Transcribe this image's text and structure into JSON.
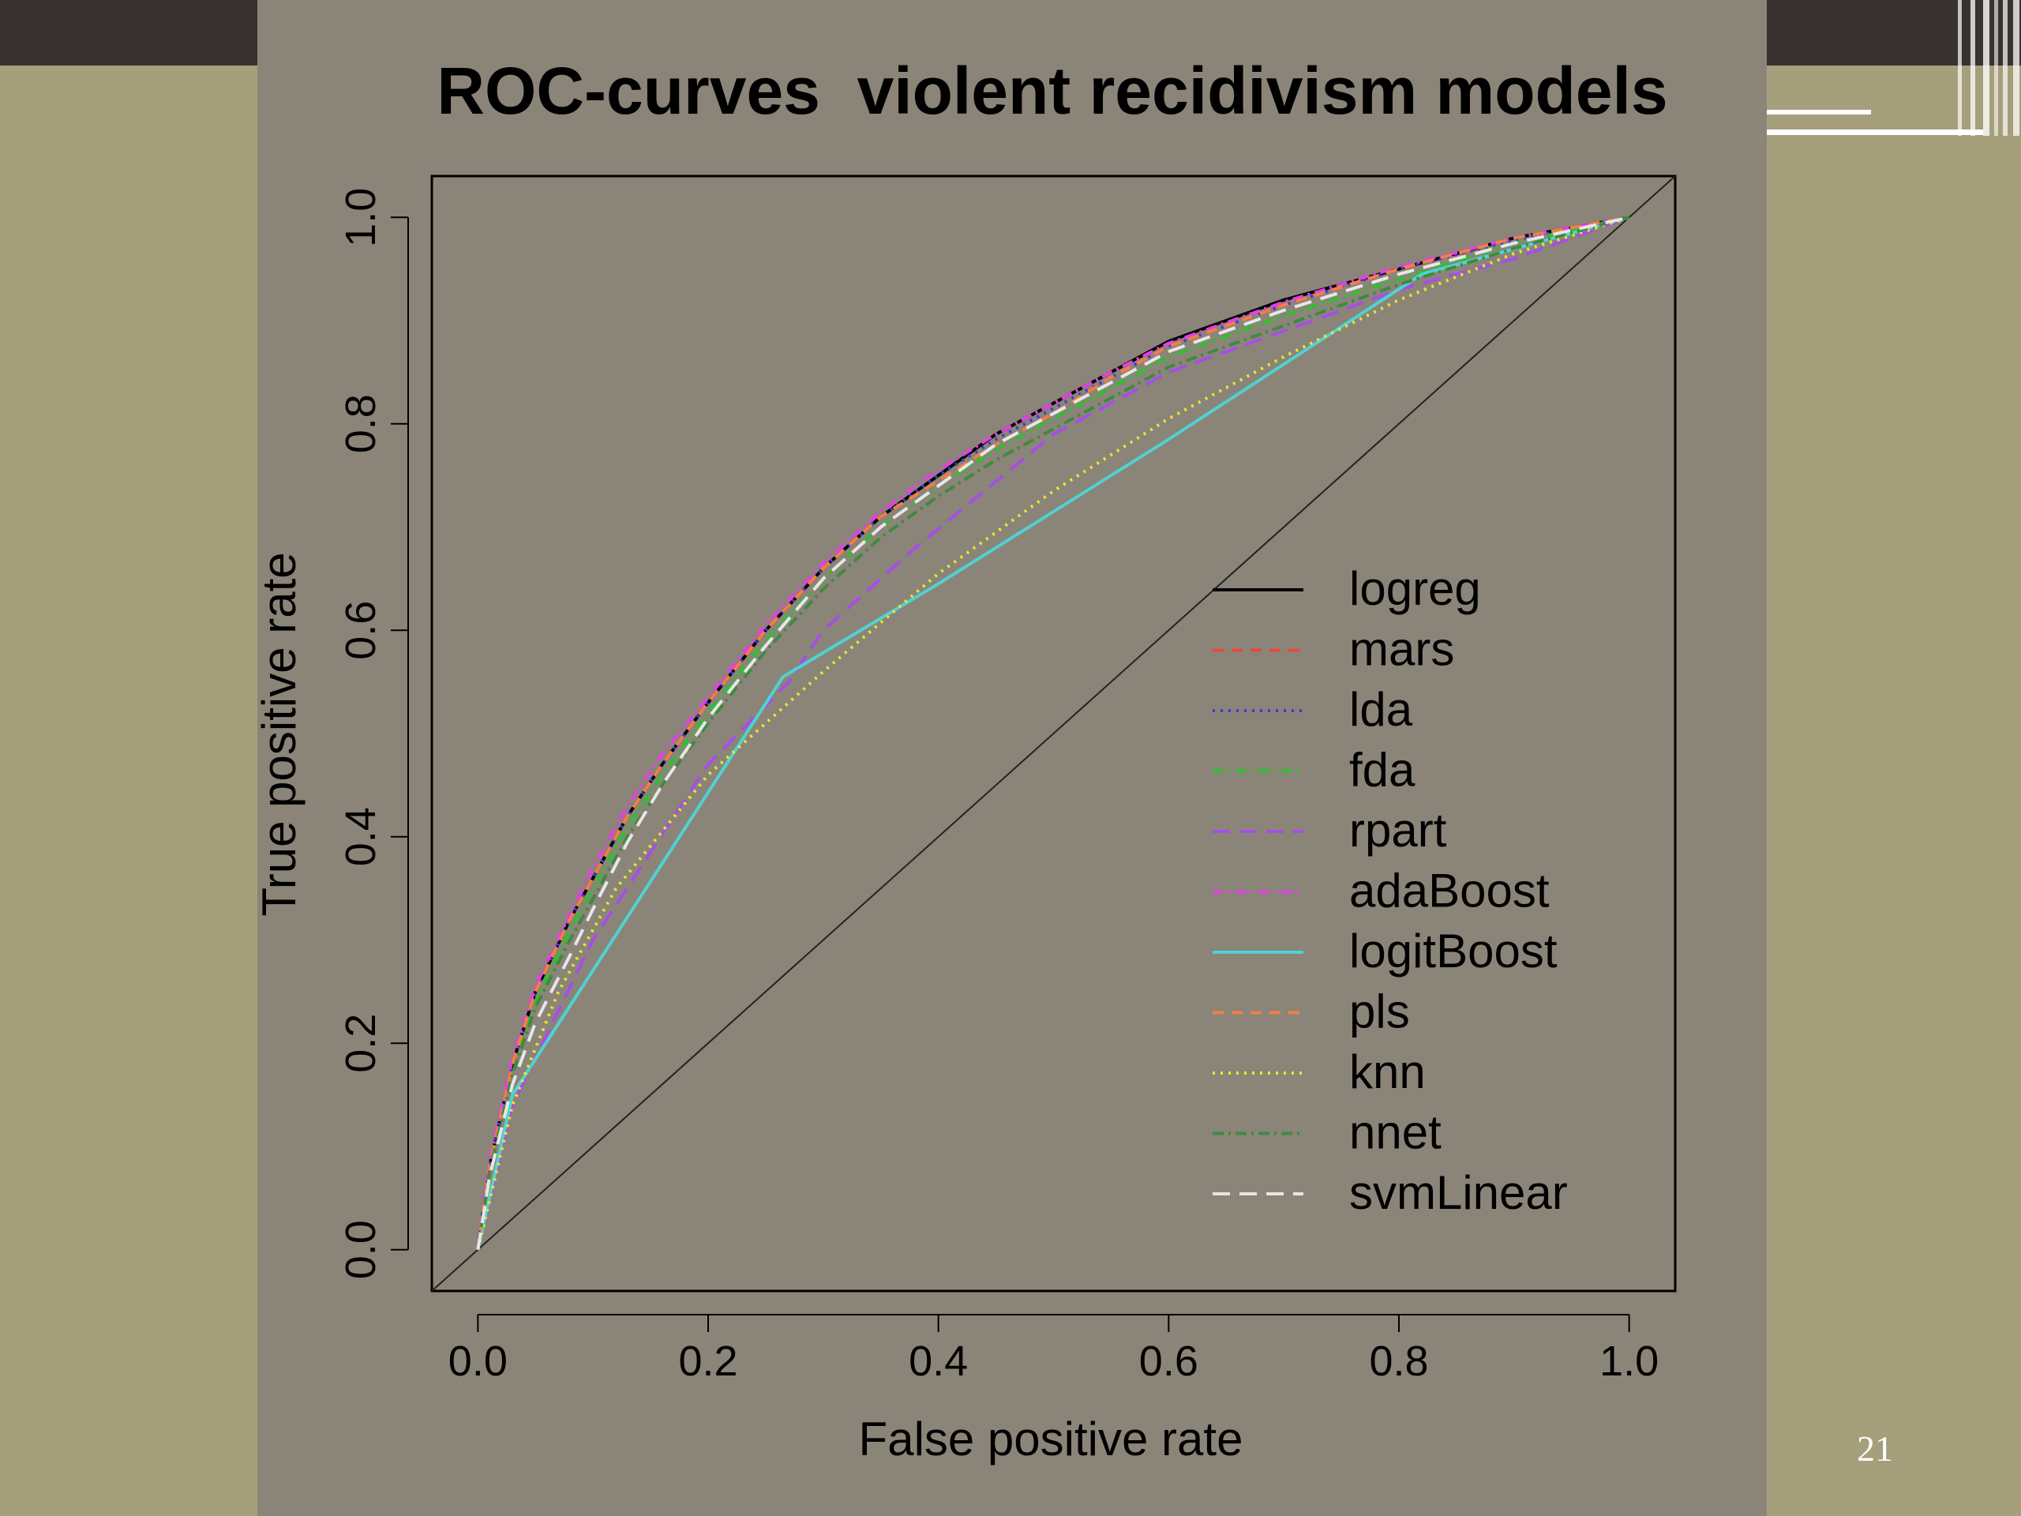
{
  "slide": {
    "page_number": "21"
  },
  "chart_data": {
    "type": "line",
    "title": "ROC-curves  violent recidivism models",
    "xlabel": "False positive rate",
    "ylabel": "True positive rate",
    "xlim": [
      -0.04,
      1.04
    ],
    "ylim": [
      -0.04,
      1.04
    ],
    "xticks": [
      "0.0",
      "0.2",
      "0.4",
      "0.6",
      "0.8",
      "1.0"
    ],
    "yticks": [
      "0.0",
      "0.2",
      "0.4",
      "0.6",
      "0.8",
      "1.0"
    ],
    "grid": false,
    "legend_position": "bottom-right",
    "reference_line": {
      "x": [
        -0.04,
        1.04
      ],
      "y": [
        -0.04,
        1.04
      ],
      "color": "#222222"
    },
    "series": [
      {
        "name": "logreg",
        "color": "#000000",
        "dash": "",
        "x": [
          0,
          0.01,
          0.03,
          0.05,
          0.08,
          0.1,
          0.13,
          0.16,
          0.2,
          0.25,
          0.3,
          0.35,
          0.4,
          0.45,
          0.5,
          0.55,
          0.6,
          0.7,
          0.8,
          0.9,
          1
        ],
        "y": [
          0,
          0.08,
          0.18,
          0.25,
          0.32,
          0.36,
          0.42,
          0.47,
          0.53,
          0.6,
          0.66,
          0.71,
          0.75,
          0.79,
          0.82,
          0.85,
          0.88,
          0.92,
          0.95,
          0.98,
          1
        ]
      },
      {
        "name": "mars",
        "color": "#e8473d",
        "dash": "14,10",
        "x": [
          0,
          0.01,
          0.03,
          0.05,
          0.08,
          0.1,
          0.13,
          0.16,
          0.2,
          0.25,
          0.3,
          0.35,
          0.4,
          0.45,
          0.5,
          0.55,
          0.6,
          0.7,
          0.8,
          0.9,
          1
        ],
        "y": [
          0,
          0.08,
          0.18,
          0.25,
          0.32,
          0.36,
          0.42,
          0.47,
          0.53,
          0.6,
          0.66,
          0.71,
          0.745,
          0.78,
          0.81,
          0.845,
          0.875,
          0.915,
          0.95,
          0.98,
          1
        ]
      },
      {
        "name": "lda",
        "color": "#3b3fd6",
        "dash": "3,7",
        "x": [
          0,
          0.01,
          0.03,
          0.05,
          0.08,
          0.1,
          0.13,
          0.16,
          0.2,
          0.25,
          0.3,
          0.35,
          0.4,
          0.45,
          0.5,
          0.55,
          0.6,
          0.7,
          0.8,
          0.9,
          1
        ],
        "y": [
          0,
          0.08,
          0.18,
          0.25,
          0.32,
          0.36,
          0.42,
          0.47,
          0.53,
          0.6,
          0.66,
          0.71,
          0.75,
          0.785,
          0.815,
          0.845,
          0.875,
          0.915,
          0.95,
          0.978,
          1
        ]
      },
      {
        "name": "fda",
        "color": "#2ec12e",
        "dash": "14,6,3,6",
        "x": [
          0,
          0.01,
          0.03,
          0.05,
          0.08,
          0.1,
          0.13,
          0.16,
          0.2,
          0.25,
          0.3,
          0.35,
          0.4,
          0.45,
          0.5,
          0.55,
          0.6,
          0.7,
          0.8,
          0.9,
          1
        ],
        "y": [
          0,
          0.08,
          0.17,
          0.24,
          0.31,
          0.35,
          0.41,
          0.46,
          0.52,
          0.59,
          0.65,
          0.7,
          0.74,
          0.775,
          0.805,
          0.835,
          0.865,
          0.905,
          0.94,
          0.975,
          1
        ]
      },
      {
        "name": "rpart",
        "color": "#a64ee8",
        "dash": "22,12",
        "x": [
          0,
          0.03,
          0.1,
          0.2,
          0.27,
          0.3,
          0.38,
          0.5,
          0.6,
          0.7,
          0.8,
          0.9,
          1
        ],
        "y": [
          0,
          0.14,
          0.3,
          0.47,
          0.55,
          0.6,
          0.68,
          0.79,
          0.85,
          0.89,
          0.93,
          0.96,
          1
        ]
      },
      {
        "name": "adaBoost",
        "color": "#e43fe4",
        "dash": "14,6,3,6",
        "x": [
          0,
          0.01,
          0.03,
          0.05,
          0.08,
          0.1,
          0.13,
          0.16,
          0.2,
          0.25,
          0.3,
          0.35,
          0.4,
          0.45,
          0.5,
          0.55,
          0.6,
          0.7,
          0.8,
          0.9,
          1
        ],
        "y": [
          0,
          0.085,
          0.185,
          0.255,
          0.325,
          0.37,
          0.43,
          0.48,
          0.535,
          0.605,
          0.665,
          0.715,
          0.755,
          0.79,
          0.82,
          0.85,
          0.878,
          0.918,
          0.952,
          0.98,
          1
        ]
      },
      {
        "name": "logitBoost",
        "color": "#4fd2d2",
        "dash": "",
        "x": [
          0,
          0.03,
          0.265,
          0.4,
          0.6,
          0.82,
          1
        ],
        "y": [
          0,
          0.15,
          0.555,
          0.645,
          0.785,
          0.945,
          1
        ]
      },
      {
        "name": "pls",
        "color": "#f07f45",
        "dash": "14,10",
        "x": [
          0,
          0.01,
          0.03,
          0.05,
          0.08,
          0.1,
          0.13,
          0.16,
          0.2,
          0.25,
          0.3,
          0.35,
          0.4,
          0.45,
          0.5,
          0.55,
          0.6,
          0.7,
          0.8,
          0.9,
          1
        ],
        "y": [
          0,
          0.08,
          0.18,
          0.25,
          0.32,
          0.36,
          0.42,
          0.47,
          0.53,
          0.6,
          0.66,
          0.71,
          0.745,
          0.78,
          0.81,
          0.845,
          0.875,
          0.915,
          0.95,
          0.98,
          1
        ]
      },
      {
        "name": "knn",
        "color": "#e8e430",
        "dash": "3,7",
        "x": [
          0,
          0.03,
          0.07,
          0.12,
          0.2,
          0.3,
          0.4,
          0.5,
          0.6,
          0.7,
          0.8,
          0.9,
          1
        ],
        "y": [
          0,
          0.14,
          0.25,
          0.35,
          0.46,
          0.56,
          0.655,
          0.735,
          0.805,
          0.865,
          0.92,
          0.965,
          1
        ]
      },
      {
        "name": "nnet",
        "color": "#3f8a3f",
        "dash": "14,6,3,6",
        "x": [
          0,
          0.01,
          0.03,
          0.05,
          0.08,
          0.1,
          0.13,
          0.16,
          0.2,
          0.25,
          0.3,
          0.35,
          0.4,
          0.45,
          0.5,
          0.55,
          0.6,
          0.7,
          0.8,
          0.9,
          1
        ],
        "y": [
          0,
          0.075,
          0.17,
          0.235,
          0.3,
          0.34,
          0.4,
          0.45,
          0.51,
          0.58,
          0.64,
          0.69,
          0.73,
          0.765,
          0.795,
          0.825,
          0.855,
          0.895,
          0.935,
          0.97,
          1
        ]
      },
      {
        "name": "svmLinear",
        "color": "#e6e6e6",
        "dash": "22,12",
        "x": [
          0,
          0.01,
          0.03,
          0.05,
          0.08,
          0.1,
          0.13,
          0.16,
          0.2,
          0.25,
          0.3,
          0.35,
          0.4,
          0.45,
          0.5,
          0.55,
          0.6,
          0.7,
          0.8,
          0.9,
          1
        ],
        "y": [
          0,
          0.07,
          0.16,
          0.22,
          0.285,
          0.33,
          0.395,
          0.45,
          0.515,
          0.585,
          0.65,
          0.7,
          0.74,
          0.78,
          0.81,
          0.84,
          0.87,
          0.91,
          0.945,
          0.975,
          1
        ]
      }
    ]
  }
}
